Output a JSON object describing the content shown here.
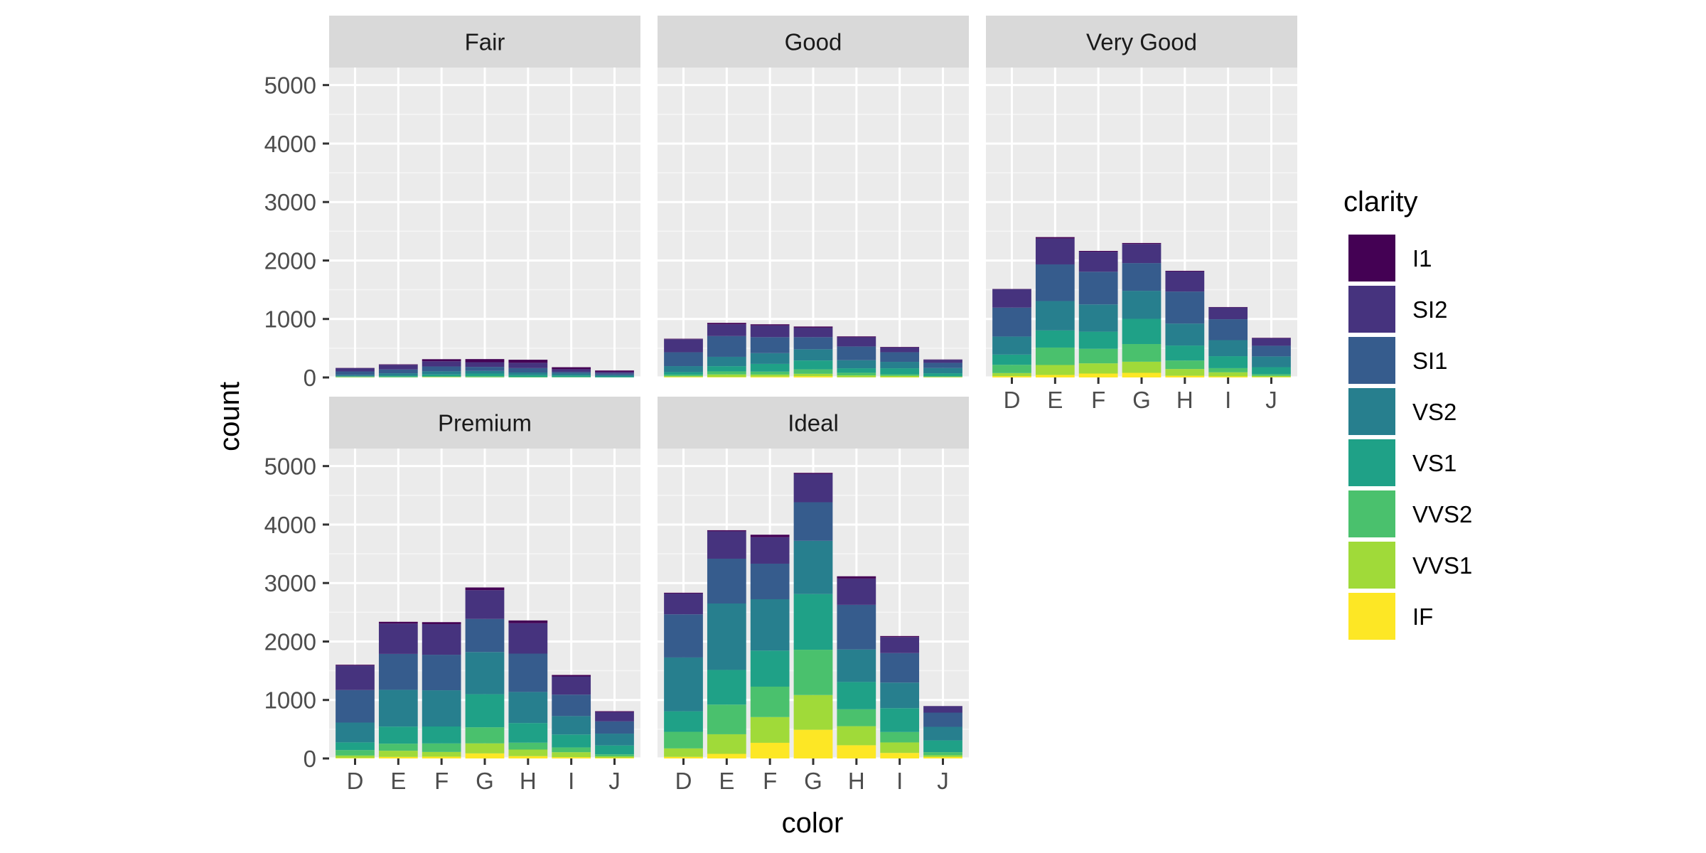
{
  "chart_data": {
    "type": "bar",
    "stacked": true,
    "facet_by": "cut",
    "xlabel": "color",
    "ylabel": "count",
    "ylim": [
      0,
      5300
    ],
    "yticks": [
      0,
      1000,
      2000,
      3000,
      4000,
      5000
    ],
    "categories": [
      "D",
      "E",
      "F",
      "G",
      "H",
      "I",
      "J"
    ],
    "legend": {
      "title": "clarity",
      "position": "right",
      "entries": [
        {
          "name": "I1",
          "color": "#440154"
        },
        {
          "name": "SI2",
          "color": "#46337E"
        },
        {
          "name": "SI1",
          "color": "#365C8D"
        },
        {
          "name": "VS2",
          "color": "#277F8E"
        },
        {
          "name": "VS1",
          "color": "#1FA187"
        },
        {
          "name": "VVS2",
          "color": "#4AC16D"
        },
        {
          "name": "VVS1",
          "color": "#A0DA39"
        },
        {
          "name": "IF",
          "color": "#FDE725"
        }
      ]
    },
    "stack_order_bottom_to_top": [
      "IF",
      "VVS1",
      "VVS2",
      "VS1",
      "VS2",
      "SI1",
      "SI2",
      "I1"
    ],
    "panels": [
      {
        "title": "Fair",
        "series": {
          "I1": [
            4,
            9,
            35,
            53,
            52,
            34,
            23
          ],
          "SI2": [
            56,
            78,
            89,
            80,
            91,
            45,
            27
          ],
          "SI1": [
            58,
            65,
            83,
            69,
            75,
            30,
            28
          ],
          "VS2": [
            25,
            42,
            53,
            45,
            41,
            32,
            23
          ],
          "VS1": [
            5,
            14,
            33,
            45,
            32,
            25,
            16
          ],
          "VVS2": [
            9,
            13,
            10,
            17,
            11,
            8,
            1
          ],
          "VVS1": [
            3,
            3,
            5,
            3,
            1,
            1,
            1
          ],
          "IF": [
            3,
            0,
            4,
            2,
            0,
            0,
            0
          ]
        }
      },
      {
        "title": "Good",
        "series": {
          "I1": [
            8,
            23,
            19,
            19,
            14,
            9,
            4
          ],
          "SI2": [
            223,
            202,
            201,
            163,
            158,
            81,
            53
          ],
          "SI1": [
            237,
            355,
            273,
            207,
            235,
            165,
            88
          ],
          "VS2": [
            104,
            160,
            184,
            192,
            138,
            110,
            90
          ],
          "VS1": [
            43,
            89,
            132,
            152,
            77,
            103,
            52
          ],
          "VVS2": [
            25,
            52,
            50,
            75,
            45,
            26,
            13
          ],
          "VVS1": [
            13,
            43,
            35,
            41,
            31,
            22,
            1
          ],
          "IF": [
            9,
            9,
            15,
            22,
            4,
            6,
            6
          ]
        }
      },
      {
        "title": "Very Good",
        "series": {
          "I1": [
            5,
            22,
            13,
            16,
            12,
            8,
            8
          ],
          "SI2": [
            314,
            445,
            343,
            327,
            343,
            200,
            128
          ],
          "SI1": [
            494,
            626,
            559,
            474,
            547,
            358,
            182
          ],
          "VS2": [
            309,
            503,
            466,
            479,
            376,
            274,
            184
          ],
          "VS1": [
            175,
            293,
            293,
            432,
            257,
            205,
            120
          ],
          "VVS2": [
            141,
            298,
            249,
            302,
            145,
            71,
            29
          ],
          "VVS1": [
            52,
            170,
            174,
            190,
            115,
            69,
            19
          ],
          "IF": [
            23,
            43,
            67,
            79,
            29,
            19,
            8
          ]
        }
      },
      {
        "title": "Premium",
        "series": {
          "I1": [
            12,
            30,
            34,
            46,
            46,
            24,
            13
          ],
          "SI2": [
            421,
            519,
            523,
            492,
            521,
            312,
            161
          ],
          "SI1": [
            556,
            614,
            608,
            566,
            655,
            367,
            209
          ],
          "VS2": [
            339,
            629,
            619,
            721,
            532,
            315,
            202
          ],
          "VS1": [
            131,
            292,
            290,
            566,
            336,
            221,
            153
          ],
          "VVS2": [
            94,
            121,
            146,
            275,
            118,
            82,
            34
          ],
          "VVS1": [
            40,
            105,
            80,
            171,
            112,
            84,
            24
          ],
          "IF": [
            10,
            27,
            31,
            87,
            40,
            23,
            12
          ]
        }
      },
      {
        "title": "Ideal",
        "series": {
          "I1": [
            13,
            18,
            42,
            16,
            38,
            17,
            2
          ],
          "SI2": [
            356,
            469,
            453,
            486,
            450,
            274,
            110
          ],
          "SI1": [
            738,
            766,
            608,
            660,
            763,
            504,
            243
          ],
          "VS2": [
            920,
            1136,
            879,
            910,
            556,
            438,
            232
          ],
          "VS1": [
            351,
            593,
            616,
            953,
            467,
            408,
            201
          ],
          "VVS2": [
            284,
            507,
            520,
            774,
            289,
            178,
            54
          ],
          "VVS1": [
            144,
            335,
            440,
            594,
            326,
            179,
            29
          ],
          "IF": [
            28,
            79,
            268,
            491,
            226,
            95,
            25
          ]
        }
      }
    ]
  }
}
